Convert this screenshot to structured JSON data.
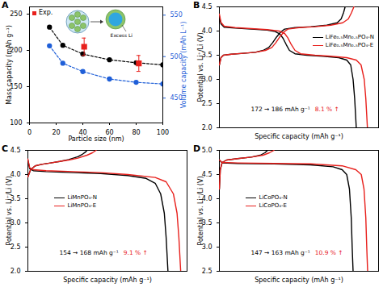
{
  "chart_data": [
    {
      "type": "line",
      "panel": "A",
      "x_label": "Particle size (nm)",
      "y_label": "Mass capacity (mAh g⁻¹)",
      "y2_label": "Volume capacity (mAh L⁻¹)",
      "xlim": [
        0,
        100
      ],
      "xticks": [
        0,
        20,
        40,
        60,
        80,
        100
      ],
      "ylim": [
        100,
        260
      ],
      "yticks": [
        100,
        150,
        200,
        250
      ],
      "y2lim": [
        420,
        560
      ],
      "y2ticks": [
        450,
        500,
        550
      ],
      "legend": "top-left",
      "annotations": [
        "Excess Li"
      ],
      "series": [
        {
          "color": "#000000",
          "marker": "circle",
          "line_style": "dashed",
          "x": [
            15,
            25,
            40,
            60,
            80,
            100
          ],
          "values": [
            232,
            207,
            195,
            187,
            183,
            180
          ]
        },
        {
          "color": "#1f5fd8",
          "marker": "circle",
          "line_style": "dashed",
          "axis": "y2",
          "x": [
            15,
            25,
            40,
            60,
            80,
            100
          ],
          "values": [
            513,
            492,
            482,
            473,
            469,
            467
          ]
        },
        {
          "name": "Exp.",
          "type": "scatter",
          "color": "#e8201c",
          "marker": "square",
          "x": [
            41,
            82
          ],
          "values": [
            205,
            182
          ],
          "error": [
            12,
            11
          ]
        }
      ]
    },
    {
      "type": "line",
      "panel": "B",
      "x_label": "Specific capacity (mAh g⁻¹)",
      "y_label": "Potential vs. Li⁺/Li (V)",
      "xlim": [
        0,
        200
      ],
      "ylim": [
        2,
        4.5
      ],
      "yticks": [
        {
          "value": 2,
          "label": "2.0"
        },
        {
          "value": 2.5,
          "label": "2.5"
        },
        {
          "value": 3,
          "label": "3.0"
        },
        {
          "value": 3.5,
          "label": "3.5"
        },
        {
          "value": 4,
          "label": "4.0"
        },
        {
          "value": 4.5,
          "label": "4.5"
        }
      ],
      "tick_labels": "y",
      "legend": "right",
      "annotation": {
        "text": "172 → 186 mAh g⁻¹",
        "highlight": "8.1 % ↑",
        "highlight_color": "#e8201c"
      },
      "series": [
        {
          "name": "LiFe₀.₅Mn₀.₅PO₄-N",
          "color": "#000000",
          "curves": [
            {
              "x": [
                0,
                2,
                5,
                15,
                30,
                45,
                55,
                62,
                67,
                72,
                77,
                82,
                95,
                115,
                135,
                148,
                153,
                156,
                158
              ],
              "values": [
                3.3,
                3.45,
                3.5,
                3.52,
                3.54,
                3.56,
                3.6,
                3.66,
                3.76,
                3.88,
                3.98,
                4.04,
                4.07,
                4.09,
                4.12,
                4.17,
                4.25,
                4.38,
                4.5
              ]
            },
            {
              "x": [
                0,
                2,
                6,
                20,
                40,
                60,
                70,
                76,
                80,
                84,
                88,
                95,
                110,
                130,
                150,
                160,
                165,
                168,
                170,
                172
              ],
              "values": [
                4.3,
                4.15,
                4.08,
                4.06,
                4.04,
                4.02,
                3.99,
                3.94,
                3.85,
                3.72,
                3.6,
                3.53,
                3.5,
                3.48,
                3.45,
                3.4,
                3.3,
                3.0,
                2.6,
                2.0
              ]
            }
          ]
        },
        {
          "name": "LiFe₀.₅Mn₀.₅PO₄-E",
          "color": "#e8201c",
          "curves": [
            {
              "x": [
                0,
                2,
                5,
                15,
                30,
                45,
                58,
                66,
                71,
                76,
                81,
                86,
                100,
                120,
                140,
                155,
                162,
                166,
                169
              ],
              "values": [
                3.3,
                3.45,
                3.5,
                3.52,
                3.54,
                3.56,
                3.6,
                3.66,
                3.76,
                3.88,
                3.98,
                4.04,
                4.07,
                4.09,
                4.12,
                4.17,
                4.25,
                4.38,
                4.5
              ]
            },
            {
              "x": [
                0,
                2,
                6,
                20,
                40,
                60,
                75,
                82,
                86,
                90,
                95,
                102,
                120,
                140,
                160,
                172,
                178,
                182,
                184,
                186
              ],
              "values": [
                4.35,
                4.18,
                4.1,
                4.07,
                4.05,
                4.03,
                4.0,
                3.95,
                3.86,
                3.73,
                3.6,
                3.53,
                3.5,
                3.48,
                3.45,
                3.4,
                3.3,
                3.0,
                2.6,
                2.0
              ]
            }
          ]
        }
      ]
    },
    {
      "type": "line",
      "panel": "C",
      "x_label": "Specific capacity (mAh g⁻¹)",
      "y_label": "Potential vs. Li⁺/Li (V)",
      "xlim": [
        0,
        175
      ],
      "ylim": [
        2,
        4.5
      ],
      "yticks": [
        {
          "value": 2,
          "label": "2.0"
        },
        {
          "value": 2.5,
          "label": "2.5"
        },
        {
          "value": 3,
          "label": "3.0"
        },
        {
          "value": 3.5,
          "label": "3.5"
        },
        {
          "value": 4,
          "label": "4.0"
        },
        {
          "value": 4.5,
          "label": "4.5"
        }
      ],
      "tick_labels": "y",
      "legend": "center-left",
      "annotation": {
        "text": "154 → 168 mAh g⁻¹",
        "highlight": "9.1 % ↑",
        "highlight_color": "#e8201c"
      },
      "series": [
        {
          "name": "LiMnPO₄-N",
          "color": "#000000",
          "curves": [
            {
              "x": [
                0,
                3,
                8,
                15,
                25,
                35,
                45,
                55,
                60,
                63,
                65
              ],
              "values": [
                3.95,
                4.1,
                4.18,
                4.21,
                4.24,
                4.27,
                4.31,
                4.37,
                4.42,
                4.46,
                4.5
              ]
            },
            {
              "x": [
                0,
                2,
                6,
                20,
                50,
                80,
                110,
                130,
                140,
                146,
                150,
                152,
                154
              ],
              "values": [
                4.3,
                4.12,
                4.08,
                4.06,
                4.04,
                4.02,
                3.98,
                3.92,
                3.82,
                3.6,
                3.2,
                2.7,
                2.0
              ]
            }
          ]
        },
        {
          "name": "LiMnPO₄-E",
          "color": "#e8201c",
          "curves": [
            {
              "x": [
                0,
                3,
                8,
                15,
                25,
                35,
                45,
                55,
                65,
                71,
                75
              ],
              "values": [
                3.95,
                4.1,
                4.18,
                4.21,
                4.24,
                4.27,
                4.3,
                4.34,
                4.4,
                4.45,
                4.5
              ]
            },
            {
              "x": [
                0,
                2,
                6,
                20,
                50,
                80,
                110,
                140,
                152,
                160,
                164,
                166,
                168
              ],
              "values": [
                4.32,
                4.14,
                4.1,
                4.08,
                4.06,
                4.04,
                4.0,
                3.94,
                3.85,
                3.6,
                3.2,
                2.7,
                2.0
              ]
            }
          ]
        }
      ]
    },
    {
      "type": "line",
      "panel": "D",
      "x_label": "Specific capacity (mAh g⁻¹)",
      "y_label": "Potential vs. Li⁺/Li (V)",
      "xlim": [
        0,
        175
      ],
      "ylim": [
        2.5,
        5
      ],
      "yticks": [
        {
          "value": 2.5,
          "label": "2.5"
        },
        {
          "value": 3,
          "label": "3.0"
        },
        {
          "value": 3.5,
          "label": "3.5"
        },
        {
          "value": 4,
          "label": "4.0"
        },
        {
          "value": 4.5,
          "label": "4.5"
        },
        {
          "value": 5,
          "label": "5.0"
        }
      ],
      "tick_labels": "y",
      "legend": "center-left",
      "annotation": {
        "text": "147 → 163 mAh g⁻¹",
        "highlight": "10.9 % ↑",
        "highlight_color": "#e8201c"
      },
      "series": [
        {
          "name": "LiCoPO₄-N",
          "color": "#000000",
          "curves": [
            {
              "x": [
                0,
                1,
                3,
                8,
                20,
                35,
                45,
                50,
                53
              ],
              "values": [
                4.2,
                4.6,
                4.75,
                4.8,
                4.83,
                4.86,
                4.9,
                4.95,
                5.0
              ]
            },
            {
              "x": [
                0,
                3,
                20,
                60,
                100,
                125,
                135,
                140,
                143,
                145,
                146,
                147
              ],
              "values": [
                4.8,
                4.74,
                4.73,
                4.72,
                4.7,
                4.66,
                4.6,
                4.5,
                4.2,
                3.6,
                3.0,
                2.5
              ]
            }
          ]
        },
        {
          "name": "LiCoPO₄-E",
          "color": "#e8201c",
          "curves": [
            {
              "x": [
                0,
                1,
                3,
                8,
                20,
                35,
                48,
                55,
                60
              ],
              "values": [
                4.2,
                4.6,
                4.75,
                4.8,
                4.83,
                4.86,
                4.9,
                4.95,
                5.0
              ]
            },
            {
              "x": [
                0,
                3,
                20,
                60,
                100,
                135,
                150,
                156,
                159,
                161,
                162,
                163
              ],
              "values": [
                4.8,
                4.75,
                4.74,
                4.73,
                4.72,
                4.68,
                4.6,
                4.5,
                4.2,
                3.6,
                3.0,
                2.5
              ]
            }
          ]
        }
      ]
    }
  ]
}
